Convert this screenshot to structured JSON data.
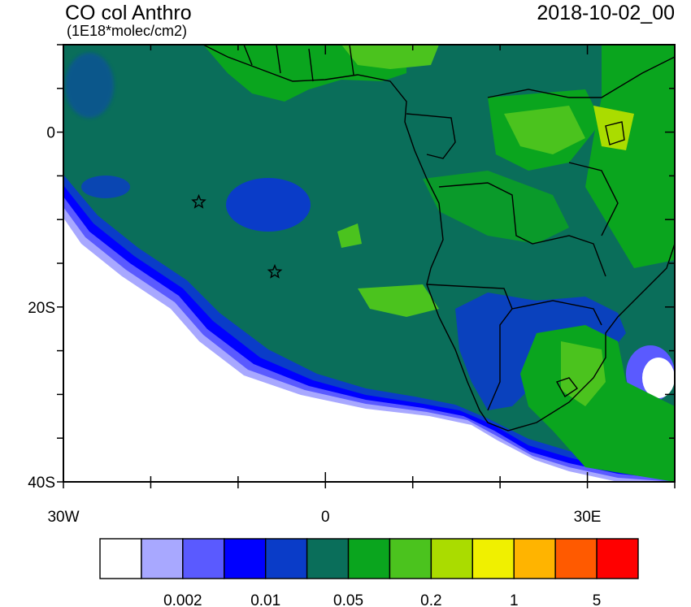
{
  "header": {
    "title": "CO col Anthro",
    "units": "(1E18*molec/cm2)",
    "datetime": "2018-10-02_00"
  },
  "axes": {
    "x_ticks": [
      {
        "label": "30W",
        "lon": -30
      },
      {
        "label": "0",
        "lon": 0
      },
      {
        "label": "30E",
        "lon": 30
      }
    ],
    "y_ticks": [
      {
        "label": "0",
        "lat": 0
      },
      {
        "label": "20S",
        "lat": -20
      },
      {
        "label": "40S",
        "lat": -40
      }
    ],
    "lon_range": [
      -30,
      40
    ],
    "lat_range": [
      -40,
      10
    ]
  },
  "colorbar": {
    "colors": [
      "#ffffff",
      "#a8a8ff",
      "#5a5aff",
      "#0000ff",
      "#0a3cc8",
      "#0a6e5a",
      "#0aa51e",
      "#4bc31e",
      "#aadc00",
      "#f0f000",
      "#ffb400",
      "#ff5a00",
      "#ff0000"
    ],
    "labels": [
      "0.002",
      "0.01",
      "0.05",
      "0.2",
      "1",
      "5"
    ]
  },
  "markers": [
    {
      "name": "star-marker-north",
      "lon": -14.5,
      "lat": -8
    },
    {
      "name": "star-marker-south",
      "lon": -5.8,
      "lat": -16
    }
  ]
}
